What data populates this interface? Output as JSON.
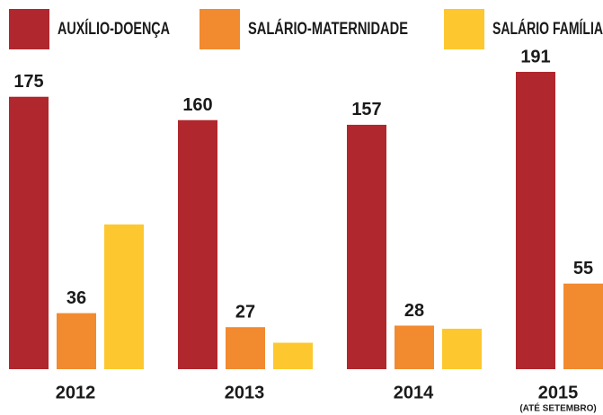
{
  "chart_data": {
    "type": "bar",
    "categories": [
      "2012",
      "2013",
      "2014",
      "2015"
    ],
    "annotation": "(ATÉ SETEMBRO)",
    "series": [
      {
        "name": "AUXÍLIO-DOENÇA",
        "color": "#b0272d",
        "values": [
          175,
          160,
          157,
          191
        ],
        "show_labels": true
      },
      {
        "name": "SALÁRIO-MATERNIDADE",
        "color": "#f28a30",
        "values": [
          36,
          27,
          28,
          55
        ],
        "show_labels": true
      },
      {
        "name": "SALÁRIO FAMÍLIA",
        "color": "#fdc82f",
        "values": [
          93,
          17,
          26,
          null
        ],
        "show_labels": false
      }
    ],
    "ylim": [
      0,
      191
    ]
  }
}
